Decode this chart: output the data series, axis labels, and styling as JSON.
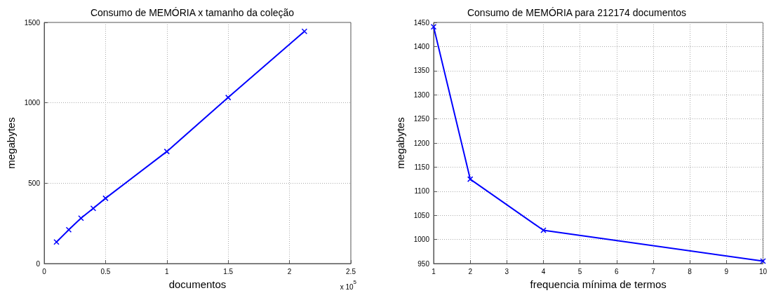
{
  "chart_data": [
    {
      "type": "line",
      "title": "Consumo de MEMÓRIA x tamanho da coleção",
      "xlabel": "documentos",
      "ylabel": "megabytes",
      "annotations": [
        "x 10$^{5}$"
      ],
      "x": [
        0.1,
        0.2,
        0.3,
        0.4,
        0.5,
        1.0,
        1.5,
        2.12174
      ],
      "series": [
        {
          "color": "#0000ff",
          "values": [
            134,
            210,
            282,
            343,
            406,
            697,
            1033,
            1444
          ]
        }
      ],
      "xlim": [
        0,
        2.5
      ],
      "xticks": [
        0,
        0.5,
        1,
        1.5,
        2,
        2.5
      ],
      "ylim": [
        0,
        1500
      ],
      "yticks": [
        0,
        500,
        1000,
        1500
      ],
      "grid": true,
      "marker": "cross",
      "line_style": "solid"
    },
    {
      "type": "line",
      "title": "Consumo de MEMÓRIA para 212174 documentos",
      "xlabel": "frequencia mínima de termos",
      "ylabel": "megabytes",
      "x": [
        1,
        2,
        4,
        10
      ],
      "series": [
        {
          "color": "#0000ff",
          "values": [
            1441,
            1125,
            1019,
            955
          ]
        }
      ],
      "xlim": [
        1,
        10
      ],
      "xticks": [
        1,
        2,
        3,
        4,
        5,
        6,
        7,
        8,
        9,
        10
      ],
      "ylim": [
        950,
        1450
      ],
      "yticks": [
        950,
        1000,
        1050,
        1100,
        1150,
        1200,
        1250,
        1300,
        1350,
        1400,
        1450
      ],
      "grid": true,
      "marker": "cross",
      "line_style": "solid"
    }
  ]
}
